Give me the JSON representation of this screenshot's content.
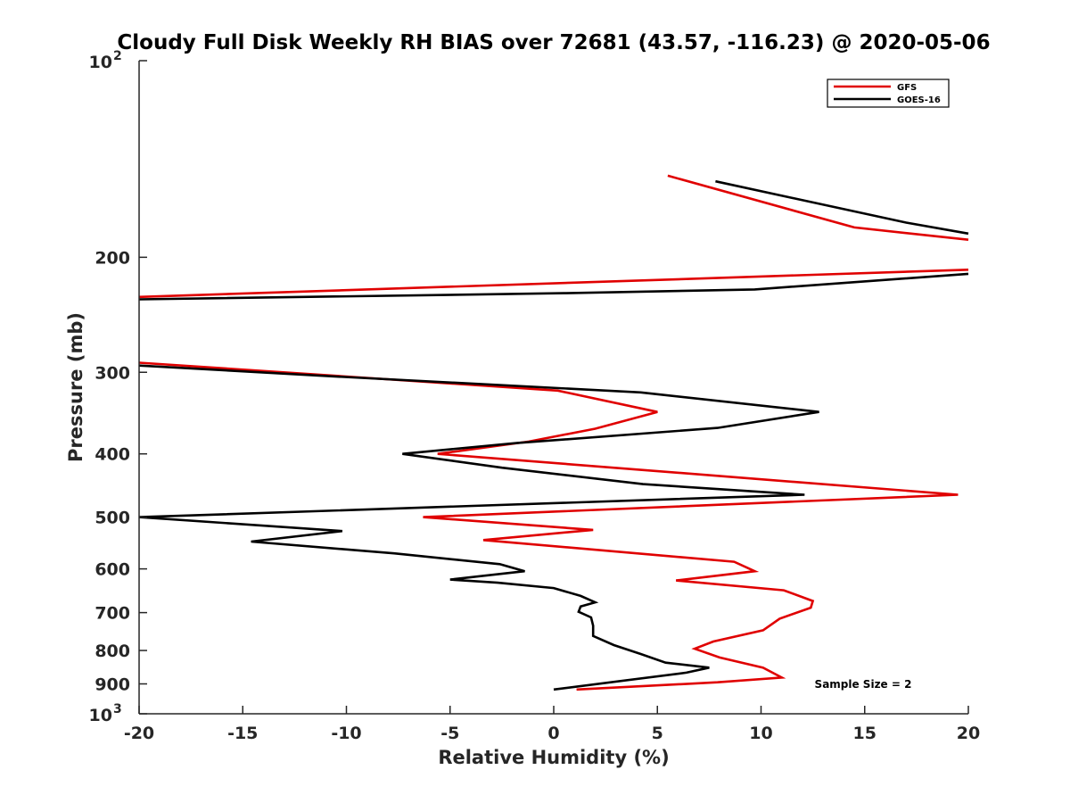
{
  "chart_data": {
    "type": "line",
    "title": "Cloudy Full Disk Weekly RH BIAS over 72681 (43.57, -116.23) @ 2020-05-06",
    "xlabel": "Relative Humidity (%)",
    "ylabel": "Pressure (mb)",
    "xlim": [
      -20,
      20
    ],
    "ylim": [
      100,
      1000
    ],
    "y_scale": "log",
    "y_reversed": true,
    "x_ticks": [
      "-20",
      "-15",
      "-10",
      "-5",
      "0",
      "5",
      "10",
      "15",
      "20"
    ],
    "y_ticks": [
      {
        "value": 100,
        "base": "10",
        "exp": "2"
      },
      {
        "value": 200,
        "label": "200"
      },
      {
        "value": 300,
        "label": "300"
      },
      {
        "value": 400,
        "label": "400"
      },
      {
        "value": 500,
        "label": "500"
      },
      {
        "value": 600,
        "label": "600"
      },
      {
        "value": 700,
        "label": "700"
      },
      {
        "value": 800,
        "label": "800"
      },
      {
        "value": 900,
        "label": "900"
      },
      {
        "value": 1000,
        "base": "10",
        "exp": "3"
      }
    ],
    "grid": false,
    "legend_position": "top-right",
    "annotation": "Sample Size = 2",
    "series": [
      {
        "name": "GFS",
        "color": "#e00000",
        "points": [
          [
            [
              5.5,
              150
            ],
            [
              14.5,
              180
            ],
            [
              20,
              188
            ]
          ],
          [
            [
              20,
              209
            ],
            [
              -20,
              230
            ]
          ],
          [
            [
              -20,
              290
            ],
            [
              0.2,
              320
            ],
            [
              5,
              345
            ],
            [
              2,
              366
            ],
            [
              -1.2,
              383
            ],
            [
              -5.6,
              400
            ],
            [
              19.5,
              462
            ],
            [
              -6.3,
              500
            ],
            [
              1.9,
              523
            ],
            [
              -3.4,
              542
            ],
            [
              8.7,
              585
            ],
            [
              9.7,
              605
            ],
            [
              5.9,
              625
            ],
            [
              11.1,
              647
            ],
            [
              12.5,
              672
            ],
            [
              12.4,
              688
            ],
            [
              10.9,
              715
            ],
            [
              10.1,
              745
            ],
            [
              7.7,
              775
            ],
            [
              6.8,
              795
            ],
            [
              8,
              820
            ],
            [
              10.1,
              850
            ],
            [
              11,
              880
            ],
            [
              7.9,
              895
            ],
            [
              1.1,
              918
            ]
          ]
        ]
      },
      {
        "name": "GOES-16",
        "color": "#000000",
        "points": [
          [
            [
              7.8,
              153
            ],
            [
              17,
              177
            ],
            [
              20,
              184
            ]
          ],
          [
            [
              20,
              212
            ],
            [
              9.7,
              224
            ],
            [
              0.5,
              227
            ],
            [
              -20,
              232
            ]
          ],
          [
            [
              -20,
              293
            ],
            [
              -10.1,
              305
            ],
            [
              4.2,
              322
            ],
            [
              12.8,
              345
            ],
            [
              7.9,
              365
            ],
            [
              -1.8,
              385
            ],
            [
              -7.3,
              400
            ],
            [
              -2.5,
              420
            ],
            [
              4.3,
              445
            ],
            [
              12.1,
              462
            ],
            [
              -20,
              500
            ],
            [
              -10.2,
              525
            ],
            [
              -14.6,
              545
            ],
            [
              -7.7,
              568
            ],
            [
              -2.6,
              590
            ],
            [
              -1.4,
              605
            ],
            [
              -5,
              623
            ],
            [
              -2.7,
              630
            ],
            [
              0,
              642
            ],
            [
              1.3,
              660
            ],
            [
              2,
              675
            ],
            [
              1.3,
              685
            ],
            [
              1.2,
              698
            ],
            [
              1.8,
              712
            ],
            [
              1.9,
              733
            ],
            [
              1.9,
              760
            ],
            [
              2.9,
              785
            ],
            [
              4.2,
              810
            ],
            [
              5.4,
              835
            ],
            [
              7.5,
              850
            ],
            [
              6.4,
              865
            ],
            [
              0,
              918
            ]
          ]
        ]
      }
    ]
  }
}
